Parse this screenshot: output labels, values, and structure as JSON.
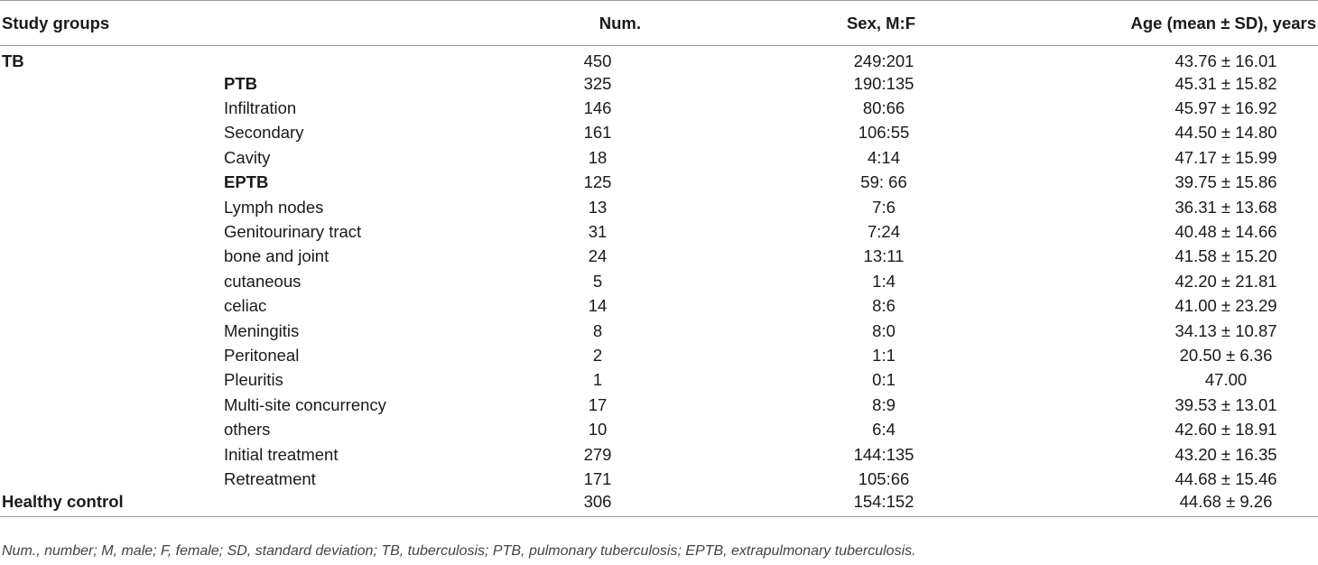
{
  "table": {
    "headers": {
      "study_groups": "Study groups",
      "num": "Num.",
      "sex": "Sex, M:F",
      "age": "Age (mean ± SD), years"
    },
    "rows": [
      {
        "group": "TB",
        "sub": "",
        "num": "450",
        "sex": "249:201",
        "age": "43.76 ± 16.01"
      },
      {
        "group": "",
        "sub": "PTB",
        "num": "325",
        "sex": "190:135",
        "age": "45.31 ± 15.82"
      },
      {
        "group": "",
        "sub": "Infiltration",
        "num": "146",
        "sex": "80:66",
        "age": "45.97 ± 16.92"
      },
      {
        "group": "",
        "sub": "Secondary",
        "num": "161",
        "sex": "106:55",
        "age": "44.50 ± 14.80"
      },
      {
        "group": "",
        "sub": "Cavity",
        "num": "18",
        "sex": "4:14",
        "age": "47.17 ± 15.99"
      },
      {
        "group": "",
        "sub": "EPTB",
        "num": "125",
        "sex": "59: 66",
        "age": "39.75 ± 15.86"
      },
      {
        "group": "",
        "sub": "Lymph nodes",
        "num": "13",
        "sex": "7:6",
        "age": "36.31 ± 13.68"
      },
      {
        "group": "",
        "sub": "Genitourinary tract",
        "num": "31",
        "sex": "7:24",
        "age": "40.48 ± 14.66"
      },
      {
        "group": "",
        "sub": "bone and joint",
        "num": "24",
        "sex": "13:11",
        "age": "41.58 ± 15.20"
      },
      {
        "group": "",
        "sub": "cutaneous",
        "num": "5",
        "sex": "1:4",
        "age": "42.20 ± 21.81"
      },
      {
        "group": "",
        "sub": "celiac",
        "num": "14",
        "sex": "8:6",
        "age": "41.00 ± 23.29"
      },
      {
        "group": "",
        "sub": "Meningitis",
        "num": "8",
        "sex": "8:0",
        "age": "34.13 ± 10.87"
      },
      {
        "group": "",
        "sub": "Peritoneal",
        "num": "2",
        "sex": "1:1",
        "age": "20.50 ± 6.36"
      },
      {
        "group": "",
        "sub": "Pleuritis",
        "num": "1",
        "sex": "0:1",
        "age": "47.00"
      },
      {
        "group": "",
        "sub": "Multi-site concurrency",
        "num": "17",
        "sex": "8:9",
        "age": "39.53 ± 13.01"
      },
      {
        "group": "",
        "sub": "others",
        "num": "10",
        "sex": "6:4",
        "age": "42.60 ± 18.91"
      },
      {
        "group": "",
        "sub": "Initial treatment",
        "num": "279",
        "sex": "144:135",
        "age": "43.20 ± 16.35"
      },
      {
        "group": "",
        "sub": "Retreatment",
        "num": "171",
        "sex": "105:66",
        "age": "44.68 ± 15.46"
      },
      {
        "group": "Healthy control",
        "sub": "",
        "num": "306",
        "sex": "154:152",
        "age": "44.68 ± 9.26"
      }
    ]
  },
  "footnote": "Num., number; M, male; F, female; SD, standard deviation; TB, tuberculosis; PTB, pulmonary tuberculosis; EPTB, extrapulmonary tuberculosis."
}
